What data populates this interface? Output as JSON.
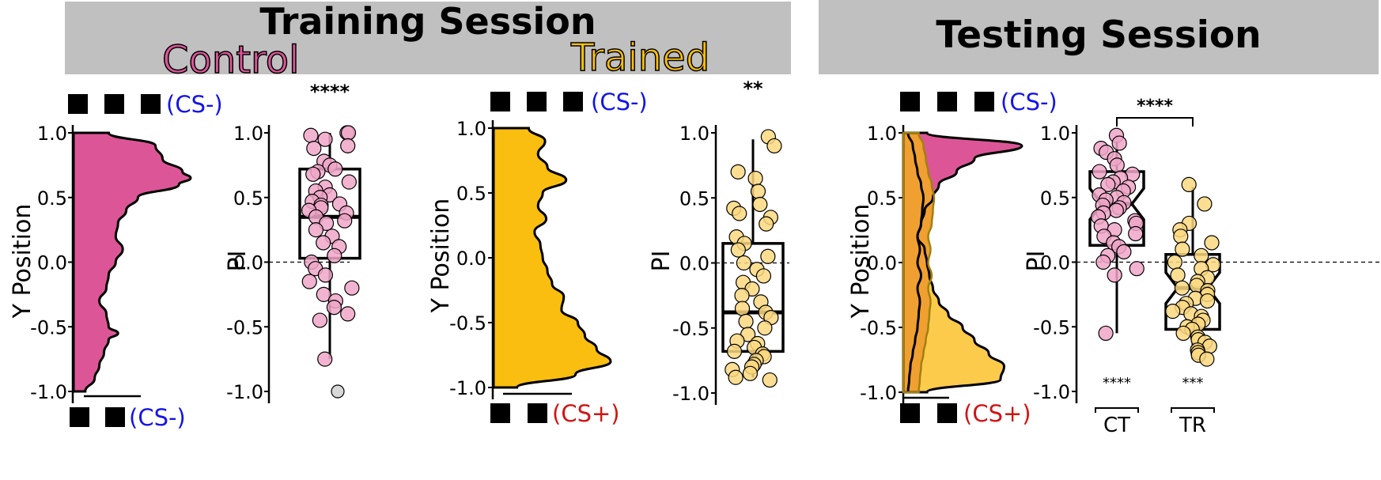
{
  "banners": {
    "training": "Training Session",
    "testing": "Testing Session"
  },
  "groups": {
    "control": "Control",
    "trained": "Trained"
  },
  "colors": {
    "control": "#dc5697",
    "control_point": "#f0a6c8",
    "trained": "#f9be0f",
    "trained_point": "#fbd880",
    "overlap": "#f0a030",
    "testing_trained_density": "#fdcb4c",
    "banner_bg": "#c0c0c0",
    "cs_minus": "#1414e6",
    "cs_plus": "#d21414",
    "outlier": "#d8d8d8"
  },
  "stimulus_labels": {
    "cs_minus": "(CS-)",
    "cs_plus": "(CS+)"
  },
  "chart_data": [
    {
      "id": "control-density",
      "type": "area",
      "title": "",
      "ylabel": "Y Position",
      "ylim": [
        -1.0,
        1.0
      ],
      "yticks": [
        "1.0",
        "0.5",
        "0.0",
        "-0.5",
        "-1.0"
      ],
      "top_stimulus": "(CS-)",
      "bottom_stimulus": "(CS-)",
      "series": [
        {
          "y": [
            1.0,
            0.9,
            0.8,
            0.7,
            0.65,
            0.6,
            0.5,
            0.4,
            0.3,
            0.2,
            0.1,
            0.0,
            -0.1,
            -0.2,
            -0.3,
            -0.4,
            -0.5,
            -0.55,
            -0.6,
            -0.7,
            -0.8,
            -0.9,
            -1.0
          ],
          "density": [
            0.3,
            0.7,
            0.76,
            0.93,
            1.0,
            0.9,
            0.55,
            0.45,
            0.38,
            0.36,
            0.42,
            0.36,
            0.3,
            0.28,
            0.22,
            0.28,
            0.3,
            0.38,
            0.3,
            0.26,
            0.22,
            0.18,
            0.1
          ]
        }
      ]
    },
    {
      "id": "control-pi",
      "type": "scatter",
      "title": "",
      "ylabel": "PI",
      "ylim": [
        -1.0,
        1.0
      ],
      "yticks": [
        "1.0",
        "0.5",
        "0.0",
        "-0.5",
        "-1.0"
      ],
      "significance": "****",
      "box": {
        "q1": 0.03,
        "median": 0.35,
        "q3": 0.72,
        "whisker_low": -0.75,
        "whisker_high": 1.0
      },
      "points": [
        1.0,
        1.0,
        0.98,
        0.95,
        0.9,
        0.88,
        0.78,
        0.75,
        0.72,
        0.7,
        0.68,
        0.62,
        0.58,
        0.55,
        0.52,
        0.5,
        0.47,
        0.45,
        0.44,
        0.42,
        0.4,
        0.38,
        0.35,
        0.32,
        0.3,
        0.25,
        0.2,
        0.15,
        0.12,
        0.05,
        0.0,
        -0.05,
        -0.1,
        -0.15,
        -0.2,
        -0.25,
        -0.3,
        -0.35,
        -0.4,
        -0.45,
        -0.75
      ],
      "outliers": [
        -1.0
      ]
    },
    {
      "id": "trained-density",
      "type": "area",
      "title": "",
      "ylabel": "Y Position",
      "ylim": [
        -1.0,
        1.0
      ],
      "yticks": [
        "1.0",
        "0.5",
        "0.0",
        "-0.5",
        "-1.0"
      ],
      "top_stimulus": "(CS-)",
      "bottom_stimulus": "(CS+)",
      "series": [
        {
          "y": [
            1.0,
            0.9,
            0.8,
            0.7,
            0.6,
            0.5,
            0.4,
            0.3,
            0.2,
            0.1,
            0.0,
            -0.1,
            -0.2,
            -0.3,
            -0.4,
            -0.5,
            -0.6,
            -0.7,
            -0.8,
            -0.9,
            -1.0
          ],
          "density": [
            0.3,
            0.44,
            0.38,
            0.46,
            0.62,
            0.42,
            0.38,
            0.45,
            0.35,
            0.4,
            0.42,
            0.46,
            0.5,
            0.6,
            0.58,
            0.72,
            0.78,
            0.88,
            1.0,
            0.7,
            0.2
          ]
        }
      ]
    },
    {
      "id": "trained-pi",
      "type": "scatter",
      "title": "",
      "ylabel": "PI",
      "ylim": [
        -1.0,
        1.0
      ],
      "yticks": [
        "1.0",
        "0.5",
        "0.0",
        "-0.5",
        "-1.0"
      ],
      "significance": "**",
      "box": {
        "q1": -0.68,
        "median": -0.38,
        "q3": 0.15,
        "whisker_low": -0.88,
        "whisker_high": 0.95
      },
      "points": [
        0.97,
        0.9,
        0.7,
        0.65,
        0.55,
        0.45,
        0.42,
        0.38,
        0.35,
        0.3,
        0.2,
        0.15,
        0.1,
        0.05,
        0.0,
        -0.05,
        -0.1,
        -0.15,
        -0.2,
        -0.25,
        -0.3,
        -0.35,
        -0.38,
        -0.42,
        -0.45,
        -0.5,
        -0.55,
        -0.6,
        -0.62,
        -0.65,
        -0.68,
        -0.7,
        -0.72,
        -0.75,
        -0.78,
        -0.8,
        -0.82,
        -0.85,
        -0.88,
        -0.9
      ],
      "outliers": []
    },
    {
      "id": "testing-density",
      "type": "area",
      "title": "",
      "ylabel": "Y Position",
      "ylim": [
        -1.0,
        1.0
      ],
      "yticks": [
        "1.0",
        "0.5",
        "0.0",
        "-0.5",
        "-1.0"
      ],
      "top_stimulus": "(CS-)",
      "bottom_stimulus": "(CS+)",
      "series": [
        {
          "y": [
            1.0,
            0.9,
            0.8,
            0.7,
            0.6,
            0.5,
            0.4,
            0.3,
            0.2,
            0.1,
            0.0,
            -0.1,
            -0.2,
            -0.3,
            -0.4,
            -0.5,
            -0.6,
            -0.7,
            -0.8,
            -0.9,
            -1.0
          ],
          "density": [
            0.2,
            1.0,
            0.6,
            0.45,
            0.3,
            0.25,
            0.18,
            0.15,
            0.12,
            0.14,
            0.12,
            0.15,
            0.12,
            0.14,
            0.13,
            0.12,
            0.1,
            0.08,
            0.06,
            0.05,
            0.04
          ]
        },
        {
          "y": [
            1.0,
            0.9,
            0.8,
            0.7,
            0.6,
            0.5,
            0.4,
            0.3,
            0.2,
            0.1,
            0.0,
            -0.1,
            -0.2,
            -0.3,
            -0.4,
            -0.5,
            -0.6,
            -0.7,
            -0.8,
            -0.9,
            -1.0
          ],
          "density": [
            0.04,
            0.08,
            0.1,
            0.12,
            0.15,
            0.17,
            0.16,
            0.15,
            0.12,
            0.18,
            0.2,
            0.22,
            0.25,
            0.3,
            0.38,
            0.5,
            0.6,
            0.72,
            0.85,
            0.82,
            0.2
          ]
        }
      ]
    },
    {
      "id": "testing-pi",
      "type": "scatter",
      "title": "",
      "ylabel": "PI",
      "ylim": [
        -1.0,
        1.0
      ],
      "yticks": [
        "1.0",
        "0.5",
        "0.0",
        "-0.5",
        "-1.0"
      ],
      "categories": [
        "CT",
        "TR"
      ],
      "significance": "****",
      "category_significance": [
        "****",
        "***"
      ],
      "boxes": [
        {
          "q1": 0.13,
          "median": 0.45,
          "q3": 0.7,
          "whisker_low": -0.55,
          "whisker_high": 0.98
        },
        {
          "q1": -0.52,
          "median": -0.2,
          "q3": 0.06,
          "whisker_low": -0.75,
          "whisker_high": 0.58
        }
      ],
      "points": [
        [
          0.98,
          0.92,
          0.88,
          0.85,
          0.8,
          0.75,
          0.7,
          0.68,
          0.65,
          0.62,
          0.6,
          0.58,
          0.55,
          0.52,
          0.5,
          0.48,
          0.46,
          0.44,
          0.42,
          0.4,
          0.38,
          0.35,
          0.32,
          0.3,
          0.28,
          0.25,
          0.22,
          0.2,
          0.15,
          0.12,
          0.08,
          0.05,
          0.0,
          -0.05,
          -0.1,
          -0.55
        ],
        [
          0.6,
          0.45,
          0.3,
          0.25,
          0.2,
          0.15,
          0.1,
          0.05,
          0.0,
          -0.02,
          -0.05,
          -0.1,
          -0.12,
          -0.15,
          -0.18,
          -0.2,
          -0.22,
          -0.25,
          -0.28,
          -0.3,
          -0.32,
          -0.35,
          -0.38,
          -0.4,
          -0.42,
          -0.45,
          -0.48,
          -0.5,
          -0.52,
          -0.55,
          -0.58,
          -0.6,
          -0.62,
          -0.65,
          -0.68,
          -0.7,
          -0.72,
          -0.75
        ]
      ]
    }
  ]
}
